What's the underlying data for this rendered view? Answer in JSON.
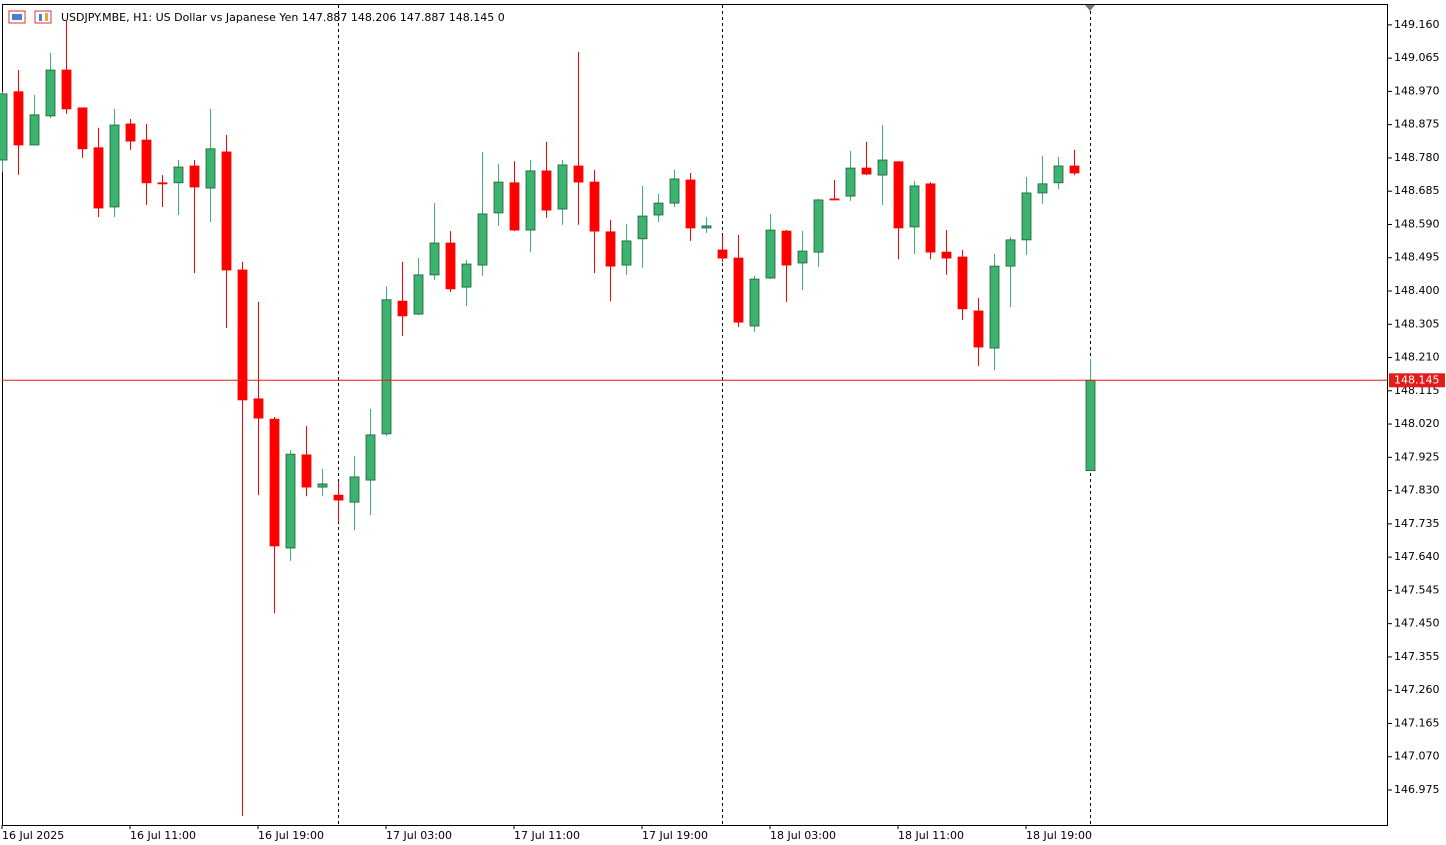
{
  "chart_data": {
    "type": "candlestick",
    "title": "USDJPY.MBE, H1:  US Dollar vs Japanese Yen  147.887 148.206 147.887 148.145  0",
    "categories": [
      "16 Jul 2025",
      null,
      null,
      null,
      null,
      null,
      null,
      null,
      "16 Jul 11:00",
      null,
      null,
      null,
      null,
      null,
      null,
      null,
      "16 Jul 19:00",
      null,
      null,
      null,
      null,
      null,
      null,
      null,
      "17 Jul 03:00",
      null,
      null,
      null,
      null,
      null,
      null,
      null,
      "17 Jul 11:00",
      null,
      null,
      null,
      null,
      null,
      null,
      null,
      "17 Jul 19:00",
      null,
      null,
      null,
      null,
      null,
      null,
      null,
      "18 Jul 03:00",
      null,
      null,
      null,
      null,
      null,
      null,
      null,
      "18 Jul 11:00",
      null,
      null,
      null,
      null,
      null,
      null,
      null,
      "18 Jul 19:00",
      null,
      null,
      null,
      null
    ],
    "open": [
      148.774,
      148.969,
      148.817,
      148.9,
      149.031,
      148.923,
      148.809,
      148.64,
      148.877,
      148.831,
      148.709,
      148.709,
      148.757,
      148.694,
      148.797,
      148.46,
      148.092,
      148.034,
      147.666,
      147.932,
      147.84,
      147.817,
      147.797,
      147.86,
      147.992,
      148.371,
      148.334,
      148.446,
      148.537,
      148.411,
      148.474,
      148.623,
      148.709,
      148.574,
      148.743,
      148.634,
      148.757,
      148.711,
      148.569,
      148.474,
      148.549,
      148.617,
      148.651,
      148.717,
      148.58,
      148.517,
      148.494,
      148.3,
      148.437,
      148.571,
      148.48,
      148.511,
      148.663,
      148.671,
      148.751,
      148.731,
      148.769,
      148.583,
      148.706,
      148.511,
      148.497,
      148.343,
      148.237,
      148.471,
      148.546,
      148.68,
      148.709,
      148.757,
      147.887
    ],
    "high": [
      148.969,
      149.031,
      148.96,
      149.08,
      149.174,
      148.923,
      148.866,
      148.92,
      148.891,
      148.877,
      148.731,
      148.774,
      148.774,
      148.92,
      148.846,
      148.483,
      148.369,
      148.04,
      147.946,
      148.014,
      147.892,
      147.854,
      147.929,
      148.063,
      148.414,
      148.483,
      148.494,
      148.651,
      148.571,
      148.489,
      148.797,
      148.763,
      148.771,
      148.774,
      148.826,
      148.774,
      149.083,
      148.746,
      148.603,
      148.591,
      148.7,
      148.677,
      148.746,
      148.737,
      148.611,
      148.557,
      148.56,
      148.443,
      148.62,
      148.574,
      148.571,
      148.663,
      148.717,
      148.8,
      148.826,
      148.874,
      148.771,
      148.714,
      148.711,
      148.574,
      148.517,
      148.38,
      148.506,
      148.554,
      148.726,
      148.786,
      148.783,
      148.803,
      148.206
    ],
    "low": [
      148.74,
      148.732,
      148.817,
      148.894,
      148.906,
      148.78,
      148.611,
      148.611,
      148.803,
      148.646,
      148.64,
      148.617,
      148.451,
      148.597,
      148.294,
      146.901,
      147.817,
      147.48,
      147.629,
      147.814,
      147.814,
      147.74,
      147.717,
      147.76,
      147.986,
      148.272,
      148.331,
      148.431,
      148.397,
      148.357,
      148.443,
      148.586,
      148.571,
      148.511,
      148.609,
      148.589,
      148.589,
      148.451,
      148.371,
      148.446,
      148.466,
      148.597,
      148.64,
      148.543,
      148.566,
      148.483,
      148.297,
      148.283,
      148.434,
      148.369,
      148.403,
      148.469,
      148.66,
      148.657,
      148.731,
      148.646,
      148.491,
      148.506,
      148.491,
      148.446,
      148.317,
      148.186,
      148.174,
      148.354,
      148.503,
      148.649,
      148.691,
      148.731,
      147.887
    ],
    "close": [
      148.963,
      148.817,
      148.903,
      149.031,
      148.92,
      148.806,
      148.637,
      148.874,
      148.828,
      148.709,
      148.706,
      148.754,
      148.697,
      148.806,
      148.46,
      148.089,
      148.037,
      147.672,
      147.934,
      147.84,
      147.849,
      147.803,
      147.869,
      147.989,
      148.375,
      148.329,
      148.446,
      148.537,
      148.406,
      148.477,
      148.62,
      148.711,
      148.574,
      148.743,
      148.631,
      148.76,
      148.711,
      148.571,
      148.471,
      148.543,
      148.614,
      148.651,
      148.72,
      148.58,
      148.586,
      148.494,
      148.311,
      148.434,
      148.574,
      148.474,
      148.514,
      148.66,
      148.66,
      148.751,
      148.734,
      148.774,
      148.58,
      148.7,
      148.511,
      148.494,
      148.349,
      148.24,
      148.471,
      148.546,
      148.68,
      148.706,
      148.757,
      148.737,
      148.145
    ],
    "up_color": "#3cb371",
    "down_color": "#ff0000",
    "current_price": 148.145,
    "current_price_color": "#e41b1b",
    "ylim": [
      146.875,
      149.231
    ],
    "yticks": [
      {
        "value": 149.16,
        "label": "149.160"
      },
      149.065,
      {
        "value": 148.97,
        "label": "148.970"
      },
      148.875,
      {
        "value": 148.78,
        "label": "148.780"
      },
      148.685,
      {
        "value": 148.59,
        "label": "148.590"
      },
      148.495,
      {
        "value": 148.4,
        "label": "148.400"
      },
      148.305,
      {
        "value": 148.21,
        "label": "148.210"
      },
      148.115,
      {
        "value": 148.02,
        "label": "148.020"
      },
      147.925,
      {
        "value": 147.83,
        "label": "147.830"
      },
      147.735,
      {
        "value": 147.64,
        "label": "147.640"
      },
      147.545,
      {
        "value": 147.45,
        "label": "147.450"
      },
      147.355,
      {
        "value": 147.26,
        "label": "147.260"
      },
      147.165,
      {
        "value": 147.07,
        "label": "147.070"
      },
      146.975
    ]
  }
}
